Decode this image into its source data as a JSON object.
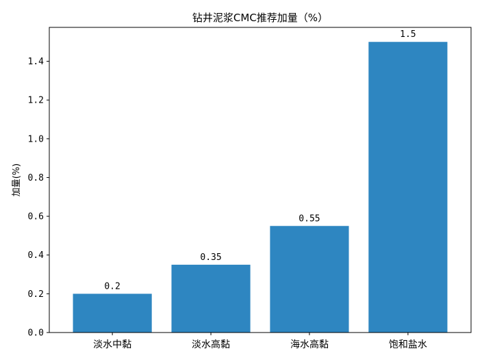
{
  "chart_data": {
    "type": "bar",
    "title": "钻井泥浆CMC推荐加量（%）",
    "xlabel": "",
    "ylabel": "加量(%)",
    "categories": [
      "淡水中黏",
      "淡水高黏",
      "海水高黏",
      "饱和盐水"
    ],
    "values": [
      0.2,
      0.35,
      0.55,
      1.5
    ],
    "data_labels": [
      "0.2",
      "0.35",
      "0.55",
      "1.5"
    ],
    "ylim": [
      0,
      1.575
    ],
    "yticks": [
      0.0,
      0.2,
      0.4,
      0.6,
      0.8,
      1.0,
      1.2,
      1.4
    ],
    "ytick_labels": [
      "0.0",
      "0.2",
      "0.4",
      "0.6",
      "0.8",
      "1.0",
      "1.2",
      "1.4"
    ],
    "bar_color": "#2e86c1",
    "grid": false,
    "legend": "none"
  }
}
